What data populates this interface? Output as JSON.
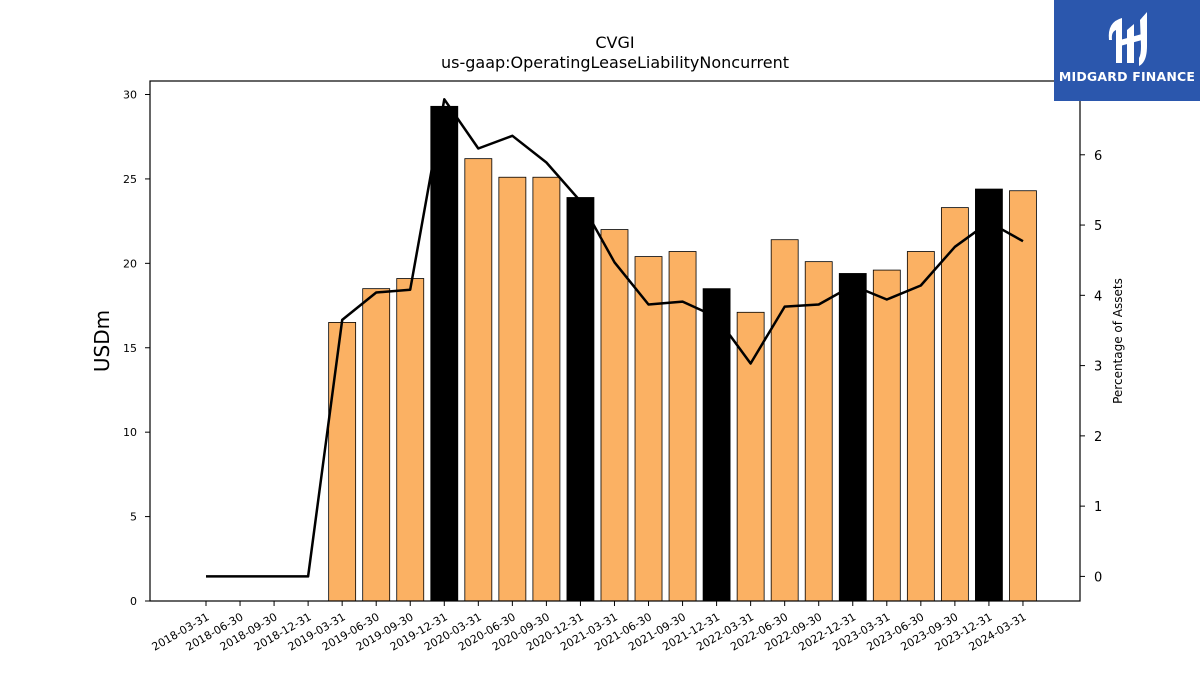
{
  "chart_data": {
    "type": "bar",
    "title": "CVGI",
    "subtitle": "us-gaap:OperatingLeaseLiabilityNoncurrent",
    "ylabel": "USDm",
    "ylabel_right": "Percentage of Assets",
    "ylim": [
      0,
      30.8
    ],
    "ylim_right": [
      -0.35,
      7.05
    ],
    "yticks": [
      0,
      5,
      10,
      15,
      20,
      25,
      30
    ],
    "yticks_right": [
      0,
      1,
      2,
      3,
      4,
      5,
      6
    ],
    "categories": [
      "2018-03-31",
      "2018-06-30",
      "2018-09-30",
      "2018-12-31",
      "2019-03-31",
      "2019-06-30",
      "2019-09-30",
      "2019-12-31",
      "2020-03-31",
      "2020-06-30",
      "2020-09-30",
      "2020-12-31",
      "2021-03-31",
      "2021-06-30",
      "2021-09-30",
      "2021-12-31",
      "2022-03-31",
      "2022-06-30",
      "2022-09-30",
      "2022-12-31",
      "2023-03-31",
      "2023-06-30",
      "2023-09-30",
      "2023-12-31",
      "2024-03-31"
    ],
    "series": [
      {
        "values": [
          null,
          null,
          null,
          null,
          16.5,
          18.5,
          19.1,
          29.3,
          26.2,
          25.1,
          25.1,
          23.9,
          22.0,
          20.4,
          20.7,
          18.5,
          17.1,
          21.4,
          20.1,
          19.4,
          19.6,
          20.7,
          23.3,
          24.4,
          24.3
        ],
        "axis": "left"
      },
      {
        "values": [
          0,
          0,
          0,
          0,
          3.65,
          4.04,
          4.08,
          6.79,
          6.09,
          6.27,
          5.89,
          5.34,
          4.47,
          3.87,
          3.91,
          3.69,
          3.03,
          3.84,
          3.87,
          4.14,
          3.94,
          4.14,
          4.69,
          5.04,
          4.77
        ],
        "axis": "right"
      }
    ],
    "bar_colors": {
      "default": "#fbb163",
      "year_end": "#000000"
    },
    "year_end_indices": [
      7,
      11,
      15,
      19,
      23
    ],
    "line_color": "#000000",
    "grid": false
  },
  "logo": {
    "text": "MIDGARD FINANCE",
    "background": "#2b57ad"
  }
}
